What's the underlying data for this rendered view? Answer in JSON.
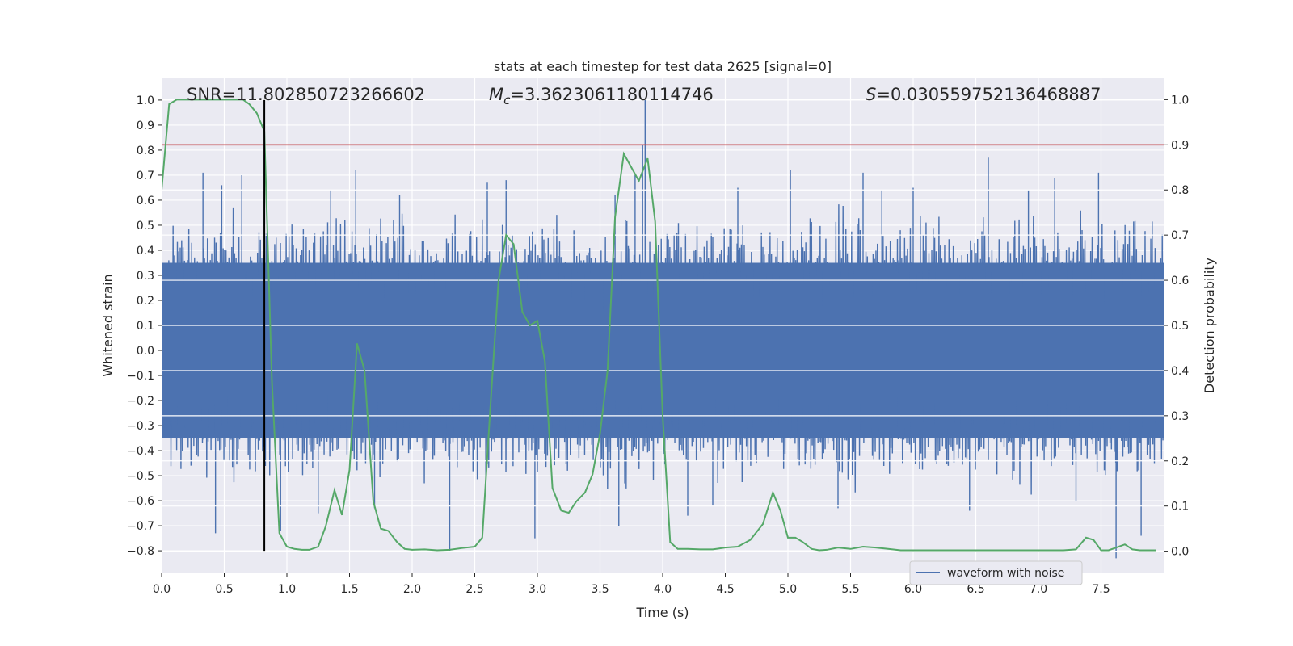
{
  "chart_data": {
    "type": "line",
    "title": "stats at each timestep for test data 2625 [signal=0]",
    "xlabel": "Time (s)",
    "ylabel_left": "Whitened strain",
    "ylabel_right": "Detection probability",
    "xlim": [
      0.0,
      8.0
    ],
    "ylim_left": [
      -0.89,
      1.09
    ],
    "ylim_right": [
      -0.049,
      1.049
    ],
    "x_ticks": [
      "0.0",
      "0.5",
      "1.0",
      "1.5",
      "2.0",
      "2.5",
      "3.0",
      "3.5",
      "4.0",
      "4.5",
      "5.0",
      "5.5",
      "6.0",
      "6.5",
      "7.0",
      "7.5"
    ],
    "y_left_ticks": [
      "-0.8",
      "-0.7",
      "-0.6",
      "-0.5",
      "-0.4",
      "-0.3",
      "-0.2",
      "-0.1",
      "0.0",
      "0.1",
      "0.2",
      "0.3",
      "0.4",
      "0.5",
      "0.6",
      "0.7",
      "0.8",
      "0.9",
      "1.0"
    ],
    "y_right_ticks": [
      "0.0",
      "0.1",
      "0.2",
      "0.3",
      "0.4",
      "0.5",
      "0.6",
      "0.7",
      "0.8",
      "0.9",
      "1.0"
    ],
    "grid": true,
    "legend_position": "lower-right",
    "annotations": {
      "snr": "SNR=11.802850723266602",
      "mc_symbol": "M",
      "mc_sub": "c",
      "mc_value": "=3.3623061180114746",
      "s_symbol": "S",
      "s_value": "=0.030559752136468887"
    },
    "threshold": {
      "axis": "right",
      "value": 0.9,
      "color": "#c44e52"
    },
    "marker_line": {
      "x": 0.82,
      "y_from": -0.8,
      "y_to": 1.0,
      "color": "#000000"
    },
    "series": [
      {
        "name": "waveform with noise",
        "axis": "left",
        "color": "#4c72b0",
        "duration": 8.0,
        "samples": 4096,
        "band_min": -0.35,
        "band_max": 0.35,
        "spikes": [
          [
            0.33,
            0.71
          ],
          [
            0.48,
            0.66
          ],
          [
            0.64,
            0.7
          ],
          [
            0.82,
            0.78
          ],
          [
            0.95,
            -0.72
          ],
          [
            1.35,
            0.64
          ],
          [
            1.55,
            0.72
          ],
          [
            1.25,
            -0.65
          ],
          [
            1.7,
            -0.63
          ],
          [
            2.3,
            -0.8
          ],
          [
            2.6,
            0.67
          ],
          [
            2.75,
            0.68
          ],
          [
            2.98,
            -0.75
          ],
          [
            3.62,
            0.62
          ],
          [
            3.86,
            1.0
          ],
          [
            3.84,
            0.82
          ],
          [
            3.78,
            0.7
          ],
          [
            3.65,
            -0.7
          ],
          [
            4.6,
            0.65
          ],
          [
            5.02,
            0.72
          ],
          [
            5.6,
            0.71
          ],
          [
            6.6,
            0.77
          ],
          [
            7.13,
            0.69
          ],
          [
            7.3,
            -0.6
          ],
          [
            7.48,
            0.71
          ],
          [
            7.62,
            -0.83
          ],
          [
            7.82,
            -0.74
          ],
          [
            0.43,
            -0.73
          ],
          [
            4.4,
            -0.62
          ],
          [
            6.45,
            -0.64
          ],
          [
            1.9,
            0.62
          ],
          [
            5.75,
            0.64
          ],
          [
            6.0,
            0.65
          ],
          [
            6.92,
            0.64
          ],
          [
            4.2,
            -0.66
          ],
          [
            5.4,
            -0.63
          ]
        ]
      },
      {
        "name": "",
        "axis": "right",
        "color": "#55a868",
        "x": [
          0.0,
          0.06,
          0.12,
          0.2,
          0.3,
          0.4,
          0.5,
          0.6,
          0.65,
          0.7,
          0.76,
          0.82,
          0.88,
          0.94,
          1.0,
          1.06,
          1.12,
          1.18,
          1.25,
          1.31,
          1.38,
          1.44,
          1.5,
          1.56,
          1.62,
          1.69,
          1.75,
          1.81,
          1.88,
          1.94,
          2.0,
          2.1,
          2.2,
          2.3,
          2.4,
          2.5,
          2.56,
          2.62,
          2.69,
          2.75,
          2.81,
          2.88,
          2.94,
          3.0,
          3.06,
          3.12,
          3.19,
          3.25,
          3.31,
          3.38,
          3.44,
          3.5,
          3.56,
          3.62,
          3.69,
          3.75,
          3.81,
          3.88,
          3.94,
          4.0,
          4.06,
          4.12,
          4.2,
          4.3,
          4.4,
          4.5,
          4.6,
          4.7,
          4.8,
          4.88,
          4.94,
          5.0,
          5.06,
          5.12,
          5.19,
          5.25,
          5.31,
          5.4,
          5.5,
          5.6,
          5.7,
          5.8,
          5.9,
          6.0,
          6.2,
          6.4,
          6.6,
          6.8,
          7.0,
          7.2,
          7.3,
          7.38,
          7.44,
          7.5,
          7.56,
          7.62,
          7.69,
          7.75,
          7.81,
          7.88,
          7.94
        ],
        "y": [
          0.8,
          0.99,
          1.0,
          1.0,
          1.0,
          1.0,
          1.0,
          1.0,
          1.0,
          0.99,
          0.97,
          0.93,
          0.38,
          0.04,
          0.01,
          0.005,
          0.003,
          0.003,
          0.01,
          0.055,
          0.135,
          0.08,
          0.18,
          0.46,
          0.4,
          0.11,
          0.05,
          0.045,
          0.02,
          0.005,
          0.003,
          0.004,
          0.002,
          0.003,
          0.007,
          0.01,
          0.03,
          0.3,
          0.6,
          0.7,
          0.68,
          0.53,
          0.5,
          0.51,
          0.42,
          0.14,
          0.09,
          0.085,
          0.11,
          0.13,
          0.17,
          0.26,
          0.4,
          0.74,
          0.88,
          0.85,
          0.82,
          0.87,
          0.73,
          0.3,
          0.02,
          0.005,
          0.005,
          0.004,
          0.004,
          0.008,
          0.01,
          0.025,
          0.06,
          0.13,
          0.09,
          0.03,
          0.03,
          0.02,
          0.005,
          0.002,
          0.003,
          0.008,
          0.005,
          0.01,
          0.008,
          0.005,
          0.002,
          0.002,
          0.002,
          0.002,
          0.002,
          0.002,
          0.002,
          0.002,
          0.004,
          0.03,
          0.025,
          0.002,
          0.002,
          0.008,
          0.015,
          0.004,
          0.002,
          0.002,
          0.002
        ]
      }
    ]
  }
}
